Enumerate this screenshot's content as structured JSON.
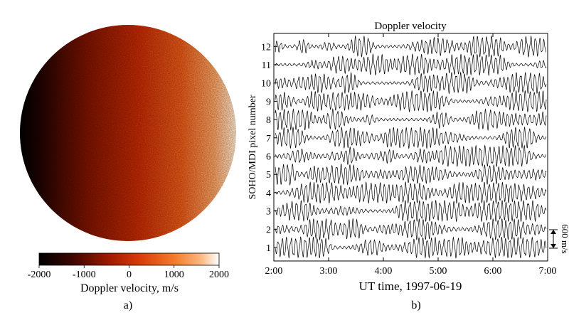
{
  "chart_data": [
    {
      "type": "heatmap",
      "panel_label": "a)",
      "description_colorbar": {
        "label": "Doppler velocity, m/s",
        "ticks": [
          -2000,
          -1000,
          0,
          1000,
          2000
        ],
        "range": [
          -2000,
          2000
        ],
        "colors": [
          "#000000",
          "#5a0a00",
          "#b81e00",
          "#e84c0e",
          "#f58a38",
          "#ffffff"
        ]
      },
      "gradient_direction": "left-to-right"
    },
    {
      "type": "line",
      "panel_label": "b)",
      "title": "Doppler velocity",
      "xlabel": "UT time, 1997-06-19",
      "ylabel": "SOHO/MDI pixel number",
      "x_ticks": [
        "2:00",
        "3:00",
        "4:00",
        "5:00",
        "6:00",
        "7:00"
      ],
      "x_range_hours": [
        2,
        7
      ],
      "y_ticks": [
        1,
        2,
        3,
        4,
        5,
        6,
        7,
        8,
        9,
        10,
        11,
        12
      ],
      "series_count": 12,
      "scale_bar": {
        "label": "600 m/s",
        "value": 600
      },
      "series_color": "#000000"
    }
  ]
}
